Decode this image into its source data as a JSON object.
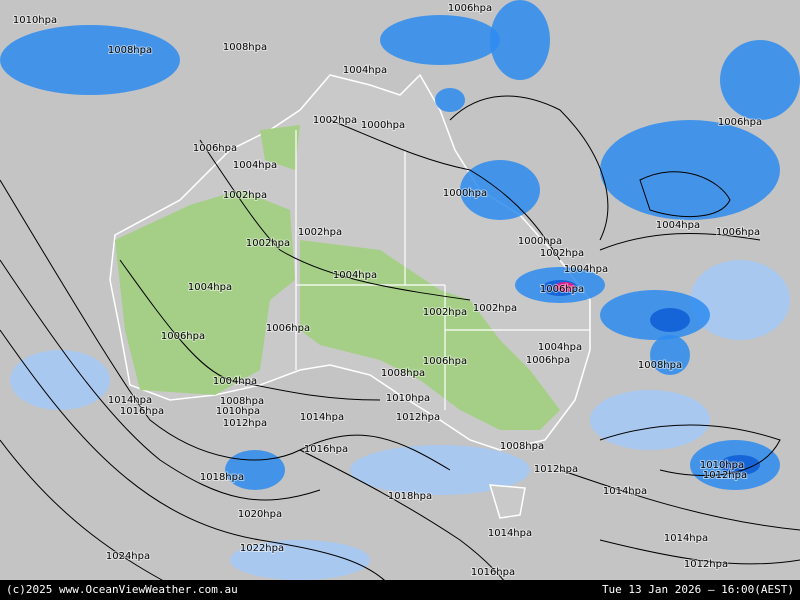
{
  "isobar_labels": [
    "1010hpa",
    "1008hpa",
    "1008hpa",
    "1006hpa",
    "1004hpa",
    "1002hpa",
    "1000hpa",
    "1006hpa",
    "1004hpa",
    "1006hpa",
    "1002hpa",
    "1000hpa",
    "1002hpa",
    "1002hpa",
    "1004hpa",
    "1006hpa",
    "1000hpa",
    "1002hpa",
    "1004hpa",
    "1004hpa",
    "1006hpa",
    "1004hpa",
    "1002hpa",
    "1002hpa",
    "1006hpa",
    "1006hpa",
    "1004hpa",
    "1006hpa",
    "1006hpa",
    "1008hpa",
    "1008hpa",
    "1004hpa",
    "1014hpa",
    "1008hpa",
    "1010hpa",
    "1016hpa",
    "1010hpa",
    "1014hpa",
    "1012hpa",
    "1012hpa",
    "1008hpa",
    "1016hpa",
    "1010hpa",
    "1012hpa",
    "1012hpa",
    "1018hpa",
    "1014hpa",
    "1018hpa",
    "1020hpa",
    "1014hpa",
    "1014hpa",
    "1022hpa",
    "1024hpa",
    "1012hpa",
    "1016hpa"
  ],
  "footer": {
    "credit": "(c)2025 www.OceanViewWeather.com.au",
    "timestamp": "Tue 13 Jan 2026 – 16:00(AEST)"
  }
}
